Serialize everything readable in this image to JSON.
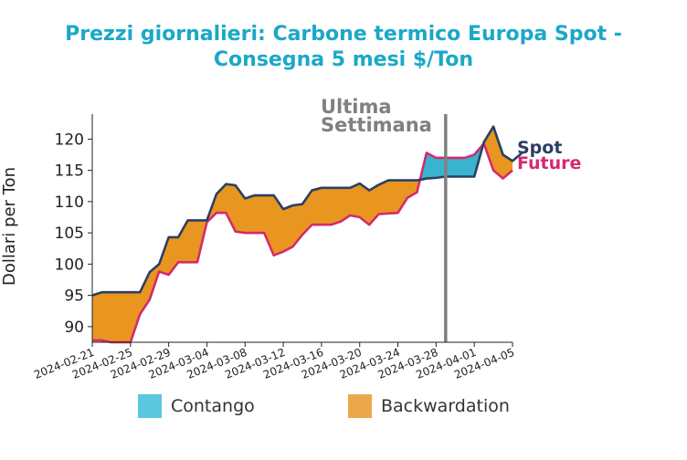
{
  "chart_data": {
    "type": "area",
    "title_lines": [
      "Prezzi giornalieri: Carbone termico Europa Spot -",
      "Consegna 5 mesi $/Ton"
    ],
    "ylabel": "Dollari per Ton",
    "xlabel": "",
    "ylim": [
      87.5,
      124
    ],
    "yticks": [
      90,
      95,
      100,
      105,
      110,
      115,
      120
    ],
    "x_tick_labels": [
      "2024-02-21",
      "2024-02-25",
      "2024-02-29",
      "2024-03-04",
      "2024-03-08",
      "2024-03-12",
      "2024-03-16",
      "2024-03-20",
      "2024-03-24",
      "2024-03-28",
      "2024-04-01",
      "2024-04-05"
    ],
    "x_tick_dates": [
      "2024-02-21",
      "2024-02-25",
      "2024-02-29",
      "2024-03-04",
      "2024-03-08",
      "2024-03-12",
      "2024-03-16",
      "2024-03-20",
      "2024-03-24",
      "2024-03-28",
      "2024-04-01",
      "2024-04-05"
    ],
    "marker": {
      "date": "2024-03-29",
      "label_lines": [
        "Ultima",
        "Settimana"
      ],
      "color": "#808080"
    },
    "series": [
      {
        "name": "Spot",
        "color": "#2b3f63",
        "points": [
          [
            "2024-02-21",
            95.0
          ],
          [
            "2024-02-22",
            95.5
          ],
          [
            "2024-02-23",
            95.5
          ],
          [
            "2024-02-26",
            95.5
          ],
          [
            "2024-02-27",
            98.7
          ],
          [
            "2024-02-28",
            100.0
          ],
          [
            "2024-02-29",
            104.3
          ],
          [
            "2024-03-01",
            104.3
          ],
          [
            "2024-03-02",
            107.0
          ],
          [
            "2024-03-04",
            107.0
          ],
          [
            "2024-03-05",
            111.2
          ],
          [
            "2024-03-06",
            112.8
          ],
          [
            "2024-03-07",
            112.6
          ],
          [
            "2024-03-08",
            110.5
          ],
          [
            "2024-03-09",
            111.0
          ],
          [
            "2024-03-11",
            111.0
          ],
          [
            "2024-03-12",
            108.8
          ],
          [
            "2024-03-13",
            109.4
          ],
          [
            "2024-03-14",
            109.6
          ],
          [
            "2024-03-15",
            111.8
          ],
          [
            "2024-03-16",
            112.2
          ],
          [
            "2024-03-19",
            112.2
          ],
          [
            "2024-03-20",
            112.9
          ],
          [
            "2024-03-21",
            111.8
          ],
          [
            "2024-03-22",
            112.7
          ],
          [
            "2024-03-23",
            113.4
          ],
          [
            "2024-03-26",
            113.4
          ],
          [
            "2024-03-27",
            113.7
          ],
          [
            "2024-03-28",
            113.8
          ],
          [
            "2024-03-29",
            114.0
          ],
          [
            "2024-04-01",
            114.0
          ],
          [
            "2024-04-02",
            119.5
          ],
          [
            "2024-04-03",
            122.0
          ],
          [
            "2024-04-04",
            117.5
          ],
          [
            "2024-04-05",
            116.5
          ],
          [
            "2024-04-06",
            117.8
          ]
        ]
      },
      {
        "name": "Future",
        "color": "#d42a6e",
        "points": [
          [
            "2024-02-21",
            87.8
          ],
          [
            "2024-02-22",
            87.8
          ],
          [
            "2024-02-23",
            87.5
          ],
          [
            "2024-02-25",
            87.5
          ],
          [
            "2024-02-26",
            92.0
          ],
          [
            "2024-02-27",
            94.3
          ],
          [
            "2024-02-28",
            98.8
          ],
          [
            "2024-02-29",
            98.3
          ],
          [
            "2024-03-01",
            100.3
          ],
          [
            "2024-03-03",
            100.3
          ],
          [
            "2024-03-04",
            106.7
          ],
          [
            "2024-03-05",
            108.2
          ],
          [
            "2024-03-06",
            108.2
          ],
          [
            "2024-03-07",
            105.2
          ],
          [
            "2024-03-08",
            105.0
          ],
          [
            "2024-03-10",
            105.0
          ],
          [
            "2024-03-11",
            101.4
          ],
          [
            "2024-03-12",
            102.0
          ],
          [
            "2024-03-13",
            102.8
          ],
          [
            "2024-03-14",
            104.7
          ],
          [
            "2024-03-15",
            106.3
          ],
          [
            "2024-03-17",
            106.3
          ],
          [
            "2024-03-18",
            106.8
          ],
          [
            "2024-03-19",
            107.8
          ],
          [
            "2024-03-20",
            107.5
          ],
          [
            "2024-03-21",
            106.3
          ],
          [
            "2024-03-22",
            108.0
          ],
          [
            "2024-03-24",
            108.2
          ],
          [
            "2024-03-25",
            110.6
          ],
          [
            "2024-03-26",
            111.5
          ],
          [
            "2024-03-27",
            117.8
          ],
          [
            "2024-03-28",
            117.0
          ],
          [
            "2024-03-31",
            117.0
          ],
          [
            "2024-04-01",
            117.5
          ],
          [
            "2024-04-02",
            119.3
          ],
          [
            "2024-04-03",
            115.0
          ],
          [
            "2024-04-04",
            113.7
          ],
          [
            "2024-04-05",
            115.0
          ]
        ]
      }
    ],
    "legend": [
      {
        "name": "Contango",
        "color": "#5bc8de"
      },
      {
        "name": "Backwardation",
        "color": "#eba84b"
      }
    ],
    "fill_colors": {
      "contango": "#39b3cf",
      "backwardation": "#e8961f"
    }
  }
}
